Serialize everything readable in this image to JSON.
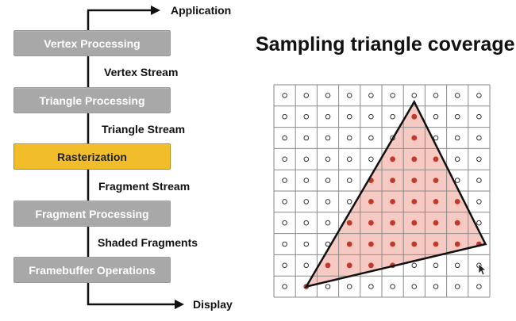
{
  "pipeline": {
    "stages": [
      "Vertex Processing",
      "Triangle Processing",
      "Rasterization",
      "Fragment Processing",
      "Framebuffer Operations"
    ],
    "streams": [
      "Vertex Stream",
      "Triangle Stream",
      "Fragment Stream",
      "Shaded Fragments"
    ],
    "input_label": "Application",
    "output_label": "Display",
    "active_stage": "Rasterization"
  },
  "grid": {
    "title": "Sampling triangle coverage",
    "cols": 10,
    "rows": 10,
    "triangle": [
      [
        1.5,
        9.5
      ],
      [
        6.5,
        0.8
      ],
      [
        9.8,
        7.5
      ]
    ],
    "covered_color": "#c0392b",
    "fill_color": "#f6c9c3"
  },
  "colors": {
    "stage_gray": "#a8a8a8",
    "stage_active": "#f2bd2b"
  }
}
